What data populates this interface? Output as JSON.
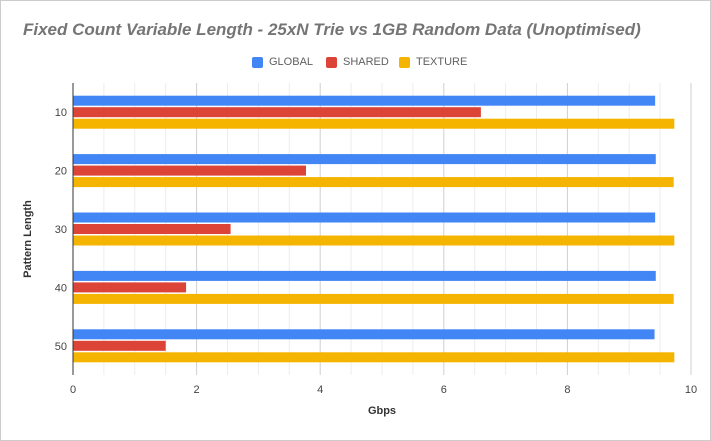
{
  "chart_data": {
    "type": "bar",
    "orientation": "horizontal",
    "title": "Fixed Count Variable Length - 25xN Trie vs 1GB Random Data (Unoptimised)",
    "xlabel": "Gbps",
    "ylabel": "Pattern Length",
    "categories": [
      "10",
      "20",
      "30",
      "40",
      "50"
    ],
    "series": [
      {
        "name": "GLOBAL",
        "color": "#4285f4",
        "values": [
          9.42,
          9.43,
          9.42,
          9.43,
          9.41
        ]
      },
      {
        "name": "SHARED",
        "color": "#db4437",
        "values": [
          6.6,
          3.77,
          2.55,
          1.83,
          1.5
        ]
      },
      {
        "name": "TEXTURE",
        "color": "#f4b400",
        "values": [
          9.73,
          9.72,
          9.73,
          9.72,
          9.73
        ]
      }
    ],
    "xlim": [
      0,
      10
    ],
    "xticks": [
      "0",
      "2",
      "4",
      "6",
      "8",
      "10"
    ],
    "grid": true,
    "legend_position": "top"
  }
}
